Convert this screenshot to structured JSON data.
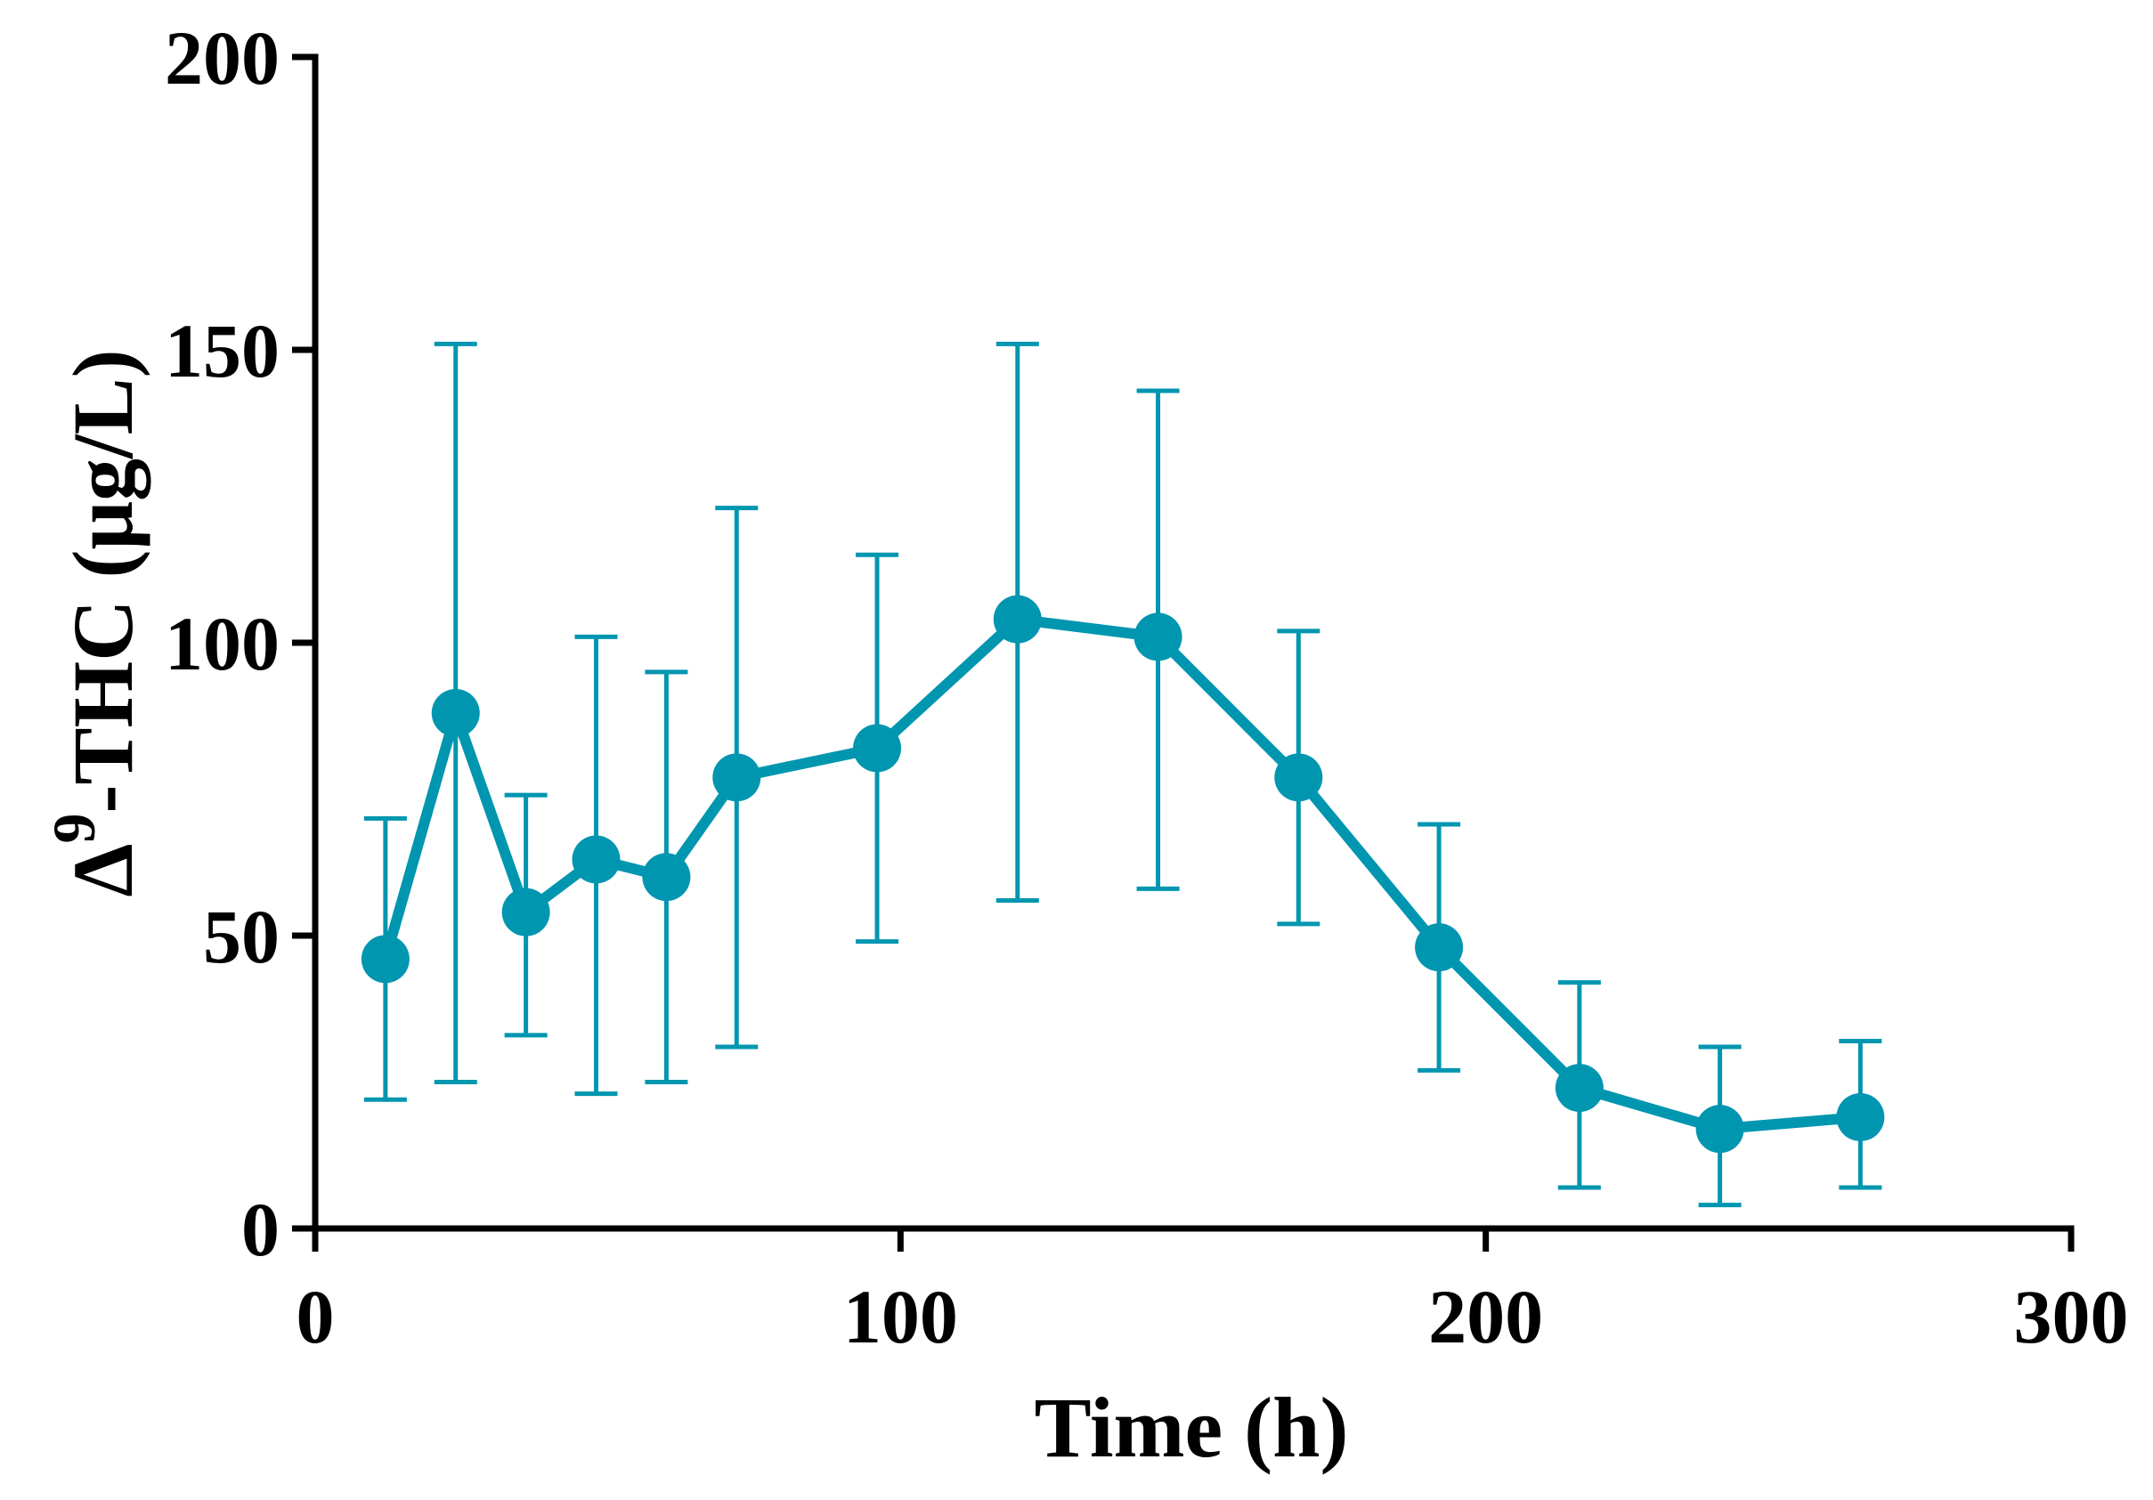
{
  "chart_data": {
    "type": "line",
    "title": "",
    "xlabel": "Time (h)",
    "ylabel": {
      "base": "Δ",
      "superscript": "9",
      "rest": "-THC (μg/L)"
    },
    "xlim": [
      0,
      300
    ],
    "ylim": [
      0,
      200
    ],
    "xticks": [
      0,
      100,
      200,
      300
    ],
    "yticks": [
      0,
      50,
      100,
      150,
      200
    ],
    "xtick_labels": [
      "0",
      "100",
      "200",
      "300"
    ],
    "ytick_labels": [
      "0",
      "50",
      "100",
      "150",
      "200"
    ],
    "grid": false,
    "legend": null,
    "series": [
      {
        "name": "Δ9-THC",
        "color": "#0096B0",
        "marker": "circle",
        "points": [
          {
            "x": 12,
            "y": 46,
            "err_low": 22,
            "err_high": 70
          },
          {
            "x": 24,
            "y": 88,
            "err_low": 25,
            "err_high": 151
          },
          {
            "x": 36,
            "y": 54,
            "err_low": 33,
            "err_high": 74
          },
          {
            "x": 48,
            "y": 63,
            "err_low": 23,
            "err_high": 101
          },
          {
            "x": 60,
            "y": 60,
            "err_low": 25,
            "err_high": 95
          },
          {
            "x": 72,
            "y": 77,
            "err_low": 31,
            "err_high": 123
          },
          {
            "x": 96,
            "y": 82,
            "err_low": 49,
            "err_high": 115
          },
          {
            "x": 120,
            "y": 104,
            "err_low": 56,
            "err_high": 151
          },
          {
            "x": 144,
            "y": 101,
            "err_low": 58,
            "err_high": 143
          },
          {
            "x": 168,
            "y": 77,
            "err_low": 52,
            "err_high": 102
          },
          {
            "x": 192,
            "y": 48,
            "err_low": 27,
            "err_high": 69
          },
          {
            "x": 216,
            "y": 24,
            "err_low": 7,
            "err_high": 42
          },
          {
            "x": 240,
            "y": 17,
            "err_low": 4,
            "err_high": 31
          },
          {
            "x": 264,
            "y": 19,
            "err_low": 7,
            "err_high": 32
          }
        ]
      }
    ]
  }
}
